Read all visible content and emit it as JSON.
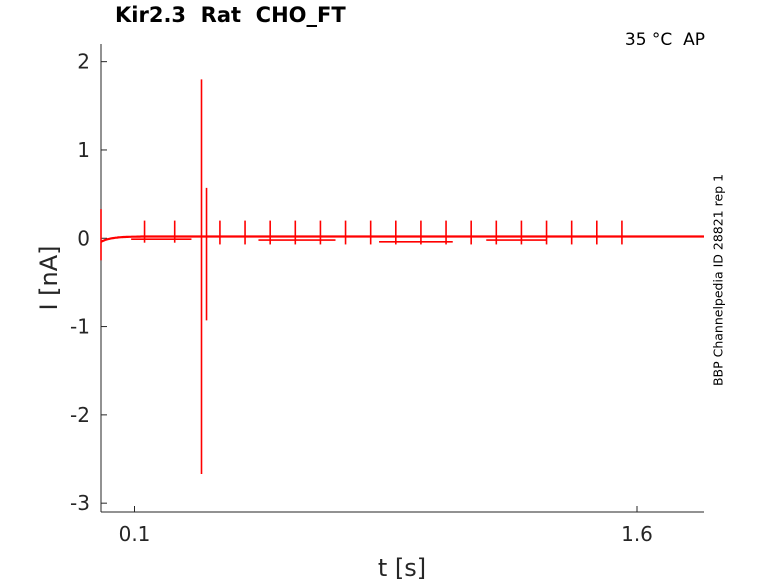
{
  "header": {
    "title": "Kir2.3  Rat  CHO_FT",
    "conditions": "35 °C  AP",
    "side_label": "BBP Channelpedia ID 28821 rep 1"
  },
  "chart_data": {
    "type": "line",
    "xlabel": "t [s]",
    "ylabel": "I [nA]",
    "xlim": [
      0.0,
      1.8
    ],
    "ylim": [
      -3.1,
      2.2
    ],
    "xticks": [
      0.1,
      1.6
    ],
    "xtick_labels": [
      "0.1",
      "1.6"
    ],
    "yticks": [
      2,
      1,
      0,
      -1,
      -2,
      -3
    ],
    "ytick_labels": [
      "2",
      "1",
      "0",
      "-1",
      "-2",
      "-3"
    ],
    "grid": false,
    "color": "#ff0000",
    "baseline_nA": 0.02,
    "transients": [
      {
        "t": 0.0,
        "min": -0.25,
        "max": 0.33
      },
      {
        "t": 0.13,
        "min": -0.05,
        "max": 0.2
      },
      {
        "t": 0.22,
        "min": -0.05,
        "max": 0.2
      },
      {
        "t": 0.3,
        "min": -2.67,
        "max": 1.8
      },
      {
        "t": 0.315,
        "min": -0.93,
        "max": 0.57
      },
      {
        "t": 0.355,
        "min": -0.07,
        "max": 0.2
      },
      {
        "t": 0.43,
        "min": -0.07,
        "max": 0.2
      },
      {
        "t": 0.505,
        "min": -0.07,
        "max": 0.2
      },
      {
        "t": 0.58,
        "min": -0.07,
        "max": 0.2
      },
      {
        "t": 0.655,
        "min": -0.07,
        "max": 0.2
      },
      {
        "t": 0.73,
        "min": -0.07,
        "max": 0.2
      },
      {
        "t": 0.805,
        "min": -0.07,
        "max": 0.2
      },
      {
        "t": 0.88,
        "min": -0.07,
        "max": 0.2
      },
      {
        "t": 0.955,
        "min": -0.07,
        "max": 0.2
      },
      {
        "t": 1.03,
        "min": -0.07,
        "max": 0.2
      },
      {
        "t": 1.105,
        "min": -0.07,
        "max": 0.2
      },
      {
        "t": 1.18,
        "min": -0.07,
        "max": 0.2
      },
      {
        "t": 1.255,
        "min": -0.07,
        "max": 0.2
      },
      {
        "t": 1.33,
        "min": -0.07,
        "max": 0.2
      },
      {
        "t": 1.405,
        "min": -0.07,
        "max": 0.2
      },
      {
        "t": 1.48,
        "min": -0.07,
        "max": 0.2
      },
      {
        "t": 1.555,
        "min": -0.07,
        "max": 0.2
      }
    ],
    "dip_segments": [
      {
        "t0": 0.09,
        "t1": 0.27,
        "value": -0.01
      },
      {
        "t0": 0.47,
        "t1": 0.7,
        "value": -0.02
      },
      {
        "t0": 0.83,
        "t1": 1.05,
        "value": -0.04
      },
      {
        "t0": 1.15,
        "t1": 1.33,
        "value": -0.02
      }
    ]
  }
}
